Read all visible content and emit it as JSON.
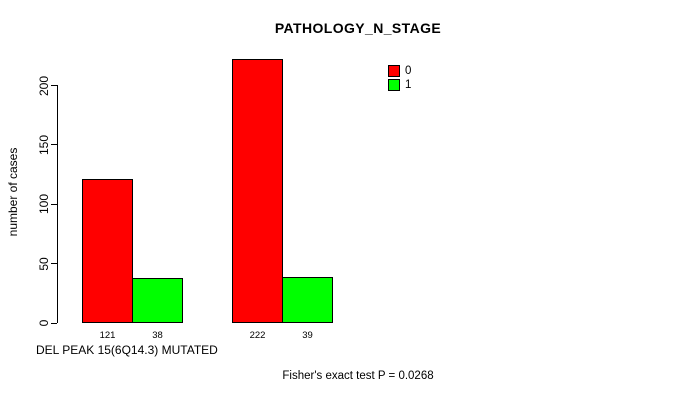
{
  "figure": {
    "background_color": "#ffffff",
    "axis_color": "#000000",
    "text_color": "#000000"
  },
  "chart_data": {
    "type": "bar",
    "title": "PATHOLOGY_N_STAGE",
    "xlabel": "DEL PEAK 15(6Q14.3) MUTATED",
    "ylabel": "number of cases",
    "yticks": [
      0,
      50,
      100,
      150,
      200
    ],
    "ylim": [
      0,
      200
    ],
    "grid": false,
    "legend_position": "top-right",
    "series": [
      {
        "name": "0",
        "color": "#ff0000",
        "values": [
          121,
          222
        ]
      },
      {
        "name": "1",
        "color": "#00ff00",
        "values": [
          38,
          39
        ]
      }
    ],
    "bar_value_labels": [
      "121",
      "38",
      "222",
      "39"
    ],
    "annotation": "Fisher's exact test P = 0.0268"
  }
}
